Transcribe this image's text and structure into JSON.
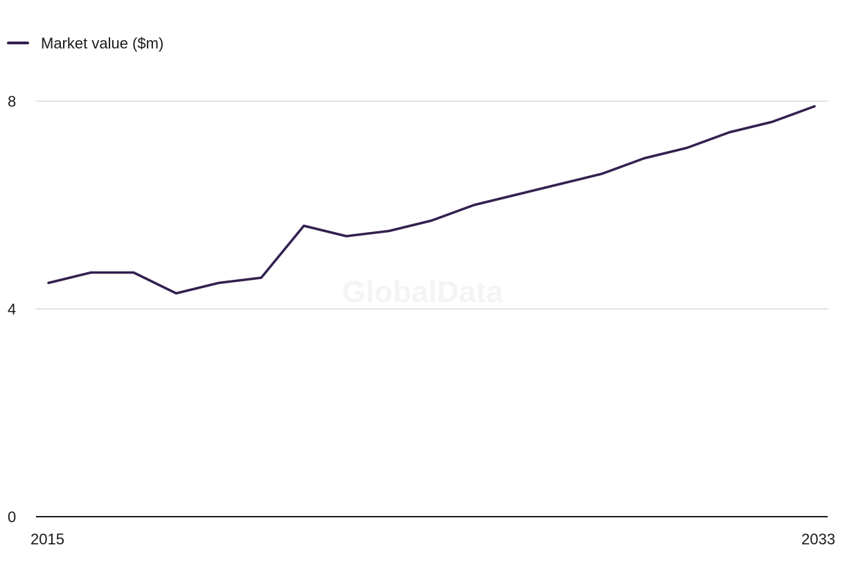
{
  "watermark": "GlobalData",
  "chart_data": {
    "type": "line",
    "title": "",
    "xlabel": "",
    "ylabel": "",
    "x": [
      2015,
      2016,
      2017,
      2018,
      2019,
      2020,
      2021,
      2022,
      2023,
      2024,
      2025,
      2026,
      2027,
      2028,
      2029,
      2030,
      2031,
      2032,
      2033
    ],
    "series": [
      {
        "name": "Market value ($m)",
        "color": "#33204f",
        "values": [
          4.5,
          4.7,
          4.7,
          4.3,
          4.5,
          4.6,
          5.6,
          5.4,
          5.5,
          5.7,
          6.0,
          6.2,
          6.4,
          6.6,
          6.9,
          7.1,
          7.4,
          7.6,
          7.9
        ]
      }
    ],
    "ylim": [
      0,
      8
    ],
    "y_ticks": [
      0,
      4,
      8
    ],
    "x_tick_labels": [
      "2015",
      "2033"
    ],
    "grid": true,
    "gridline_color": "#d9d9d9",
    "axis_color": "#1a1a1a",
    "legend_position": "top-left"
  }
}
